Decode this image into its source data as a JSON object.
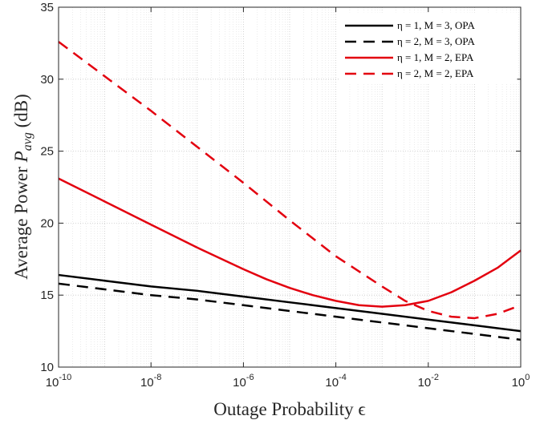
{
  "chart_data": {
    "type": "line",
    "xlabel": "Outage Probability ϵ",
    "ylabel_prefix": "Average Power ",
    "ylabel_var": "P",
    "ylabel_sub": "avg",
    "ylabel_suffix": " (dB)",
    "x_scale": "log",
    "xlim": [
      1e-10,
      1
    ],
    "ylim": [
      10,
      35
    ],
    "x_ticks": [
      {
        "base": "10",
        "exp": "-10",
        "value": 1e-10
      },
      {
        "base": "10",
        "exp": "-8",
        "value": 1e-08
      },
      {
        "base": "10",
        "exp": "-6",
        "value": 1e-06
      },
      {
        "base": "10",
        "exp": "-4",
        "value": 0.0001
      },
      {
        "base": "10",
        "exp": "-2",
        "value": 0.01
      },
      {
        "base": "10",
        "exp": "0",
        "value": 1
      }
    ],
    "y_ticks": [
      "10",
      "15",
      "20",
      "25",
      "30",
      "35"
    ],
    "grid": true,
    "legend_position": "top-right",
    "series": [
      {
        "name": "η = 1, M = 3, OPA",
        "color": "#000000",
        "style": "solid",
        "x": [
          1e-10,
          1e-09,
          1e-08,
          1e-07,
          1e-06,
          1e-05,
          0.0001,
          0.001,
          0.01,
          0.1,
          1
        ],
        "y": [
          16.4,
          16.0,
          15.6,
          15.3,
          14.9,
          14.5,
          14.1,
          13.7,
          13.3,
          12.9,
          12.5
        ]
      },
      {
        "name": "η = 2, M = 3, OPA",
        "color": "#000000",
        "style": "dashed",
        "x": [
          1e-10,
          1e-09,
          1e-08,
          1e-07,
          1e-06,
          1e-05,
          0.0001,
          0.001,
          0.01,
          0.1,
          1
        ],
        "y": [
          15.8,
          15.4,
          15.0,
          14.7,
          14.3,
          13.9,
          13.5,
          13.1,
          12.7,
          12.3,
          11.9
        ]
      },
      {
        "name": "η = 1, M = 2, EPA",
        "color": "#e3000f",
        "style": "solid",
        "x": [
          1e-10,
          1e-09,
          1e-08,
          1e-07,
          1e-06,
          3.16e-06,
          1e-05,
          3.16e-05,
          0.0001,
          0.000316,
          0.001,
          0.00316,
          0.01,
          0.0316,
          0.1,
          0.316,
          1
        ],
        "y": [
          23.1,
          21.5,
          19.9,
          18.3,
          16.8,
          16.1,
          15.5,
          15.0,
          14.6,
          14.3,
          14.2,
          14.3,
          14.6,
          15.2,
          16.0,
          16.9,
          18.1
        ]
      },
      {
        "name": "η = 2, M = 2, EPA",
        "color": "#e3000f",
        "style": "dashed",
        "x": [
          1e-10,
          1e-09,
          1e-08,
          1e-07,
          1e-06,
          1e-05,
          0.0001,
          0.001,
          0.00316,
          0.01,
          0.0316,
          0.1,
          0.316,
          1
        ],
        "y": [
          32.6,
          30.2,
          27.8,
          25.3,
          22.8,
          20.2,
          17.7,
          15.6,
          14.6,
          13.9,
          13.5,
          13.4,
          13.7,
          14.3
        ]
      }
    ]
  }
}
